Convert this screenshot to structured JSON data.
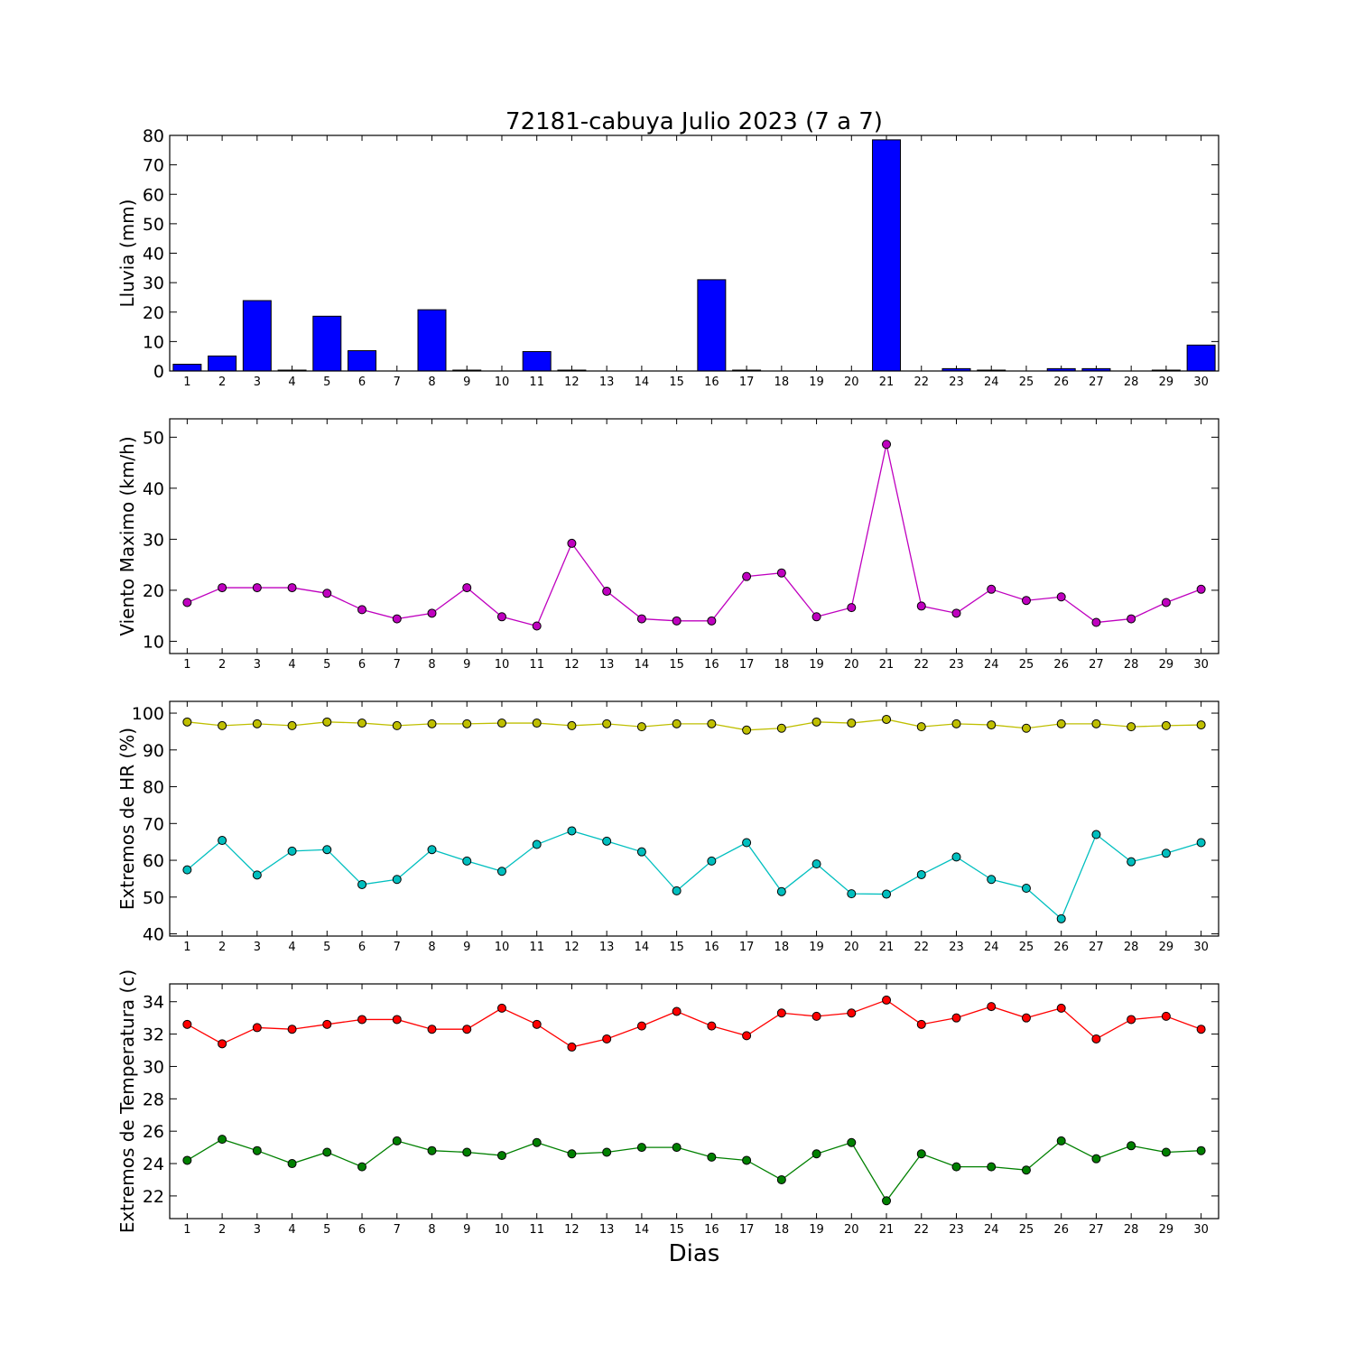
{
  "figure": {
    "title": "72181-cabuya Julio 2023  (7 a 7)",
    "xlabel": "Dias"
  },
  "chart_data": [
    {
      "type": "bar",
      "ylabel": "Lluvia (mm)",
      "ylim": [
        0,
        80
      ],
      "yticks": [
        0,
        10,
        20,
        30,
        40,
        50,
        60,
        70,
        80
      ],
      "categories": [
        1,
        2,
        3,
        4,
        5,
        6,
        7,
        8,
        9,
        10,
        11,
        12,
        13,
        14,
        15,
        16,
        17,
        18,
        19,
        20,
        21,
        22,
        23,
        24,
        25,
        26,
        27,
        28,
        29,
        30
      ],
      "values": [
        2.3,
        5.1,
        23.9,
        0.3,
        18.6,
        6.9,
        0,
        20.8,
        0.3,
        0,
        6.6,
        0.3,
        0,
        0,
        0,
        31.0,
        0.3,
        0,
        0,
        0,
        78.5,
        0,
        0.8,
        0.3,
        0,
        0.8,
        0.8,
        0,
        0.3,
        8.8
      ],
      "color": "#0000ff"
    },
    {
      "type": "line",
      "ylabel": "Viento Maximo (km/h)",
      "ylim": [
        7.6,
        53.6
      ],
      "yticks": [
        10,
        20,
        30,
        40,
        50
      ],
      "x": [
        1,
        2,
        3,
        4,
        5,
        6,
        7,
        8,
        9,
        10,
        11,
        12,
        13,
        14,
        15,
        16,
        17,
        18,
        19,
        20,
        21,
        22,
        23,
        24,
        25,
        26,
        27,
        28,
        29,
        30
      ],
      "series": [
        {
          "values": [
            17.6,
            20.5,
            20.5,
            20.5,
            19.4,
            16.2,
            14.4,
            15.5,
            20.5,
            14.8,
            13.0,
            29.2,
            19.8,
            14.4,
            14.0,
            14.0,
            22.7,
            23.4,
            14.8,
            16.6,
            48.6,
            16.9,
            15.5,
            20.2,
            18.0,
            18.7,
            13.7,
            14.4,
            17.6,
            20.2
          ],
          "color": "#bf00bf"
        }
      ]
    },
    {
      "type": "line",
      "ylabel": "Extremos de HR (%)",
      "ylim": [
        39.4,
        103.2
      ],
      "yticks": [
        40,
        50,
        60,
        70,
        80,
        90,
        100
      ],
      "x": [
        1,
        2,
        3,
        4,
        5,
        6,
        7,
        8,
        9,
        10,
        11,
        12,
        13,
        14,
        15,
        16,
        17,
        18,
        19,
        20,
        21,
        22,
        23,
        24,
        25,
        26,
        27,
        28,
        29,
        30
      ],
      "series": [
        {
          "values": [
            97.6,
            96.6,
            97.1,
            96.6,
            97.6,
            97.3,
            96.6,
            97.1,
            97.1,
            97.3,
            97.3,
            96.6,
            97.1,
            96.3,
            97.1,
            97.1,
            95.4,
            95.9,
            97.6,
            97.3,
            98.3,
            96.3,
            97.1,
            96.8,
            95.9,
            97.1,
            97.1,
            96.3,
            96.6,
            96.8
          ],
          "color": "#bfbf00"
        },
        {
          "values": [
            57.4,
            65.4,
            56.0,
            62.5,
            62.9,
            53.4,
            54.8,
            62.9,
            59.8,
            57.0,
            64.3,
            68.0,
            65.2,
            62.3,
            51.7,
            59.8,
            64.8,
            51.5,
            59.0,
            50.9,
            50.8,
            56.1,
            60.9,
            54.8,
            52.4,
            44.1,
            67.0,
            59.6,
            61.9,
            64.8
          ],
          "color": "#00bfbf"
        }
      ]
    },
    {
      "type": "line",
      "ylabel": "Extremos de Temperatura (c)",
      "ylim": [
        20.6,
        35.1
      ],
      "yticks": [
        22,
        24,
        26,
        28,
        30,
        32,
        34
      ],
      "x": [
        1,
        2,
        3,
        4,
        5,
        6,
        7,
        8,
        9,
        10,
        11,
        12,
        13,
        14,
        15,
        16,
        17,
        18,
        19,
        20,
        21,
        22,
        23,
        24,
        25,
        26,
        27,
        28,
        29,
        30
      ],
      "series": [
        {
          "values": [
            32.6,
            31.4,
            32.4,
            32.3,
            32.6,
            32.9,
            32.9,
            32.3,
            32.3,
            33.6,
            32.6,
            31.2,
            31.7,
            32.5,
            33.4,
            32.5,
            31.9,
            33.3,
            33.1,
            33.3,
            34.1,
            32.6,
            33.0,
            33.7,
            33.0,
            33.6,
            31.7,
            32.9,
            33.1,
            32.3
          ],
          "color": "#ff0000"
        },
        {
          "values": [
            24.2,
            25.5,
            24.8,
            24.0,
            24.7,
            23.8,
            25.4,
            24.8,
            24.7,
            24.5,
            25.3,
            24.6,
            24.7,
            25.0,
            25.0,
            24.4,
            24.2,
            23.0,
            24.6,
            25.3,
            21.7,
            24.6,
            23.8,
            23.8,
            23.6,
            25.4,
            24.3,
            25.1,
            24.7,
            24.8
          ],
          "color": "#008000"
        }
      ]
    }
  ]
}
